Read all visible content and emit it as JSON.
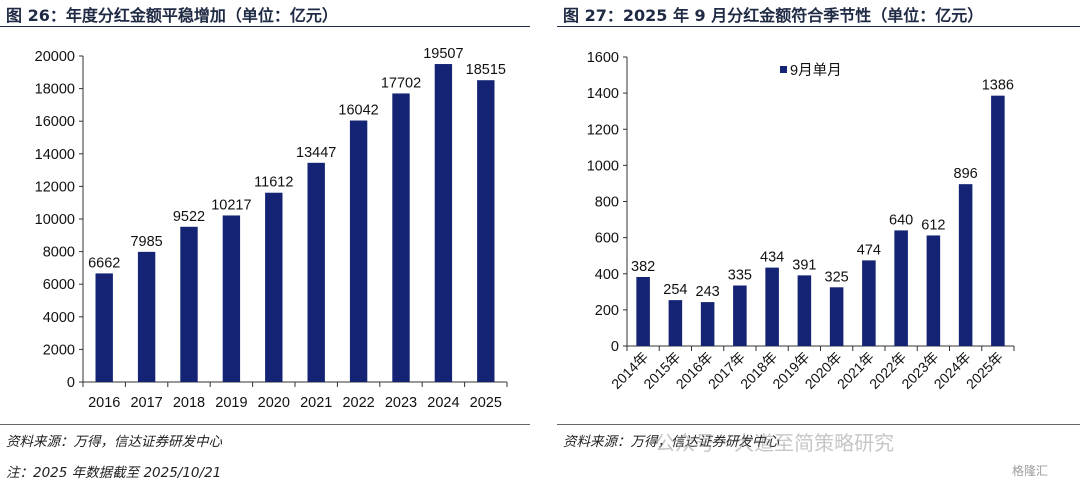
{
  "figures": [
    {
      "title": "图 26：年度分红金额平稳增加（单位：亿元）",
      "source": "资料来源：万得，信达证券研发中心",
      "footnote": "注：2025 年数据截至 2025/10/21"
    },
    {
      "title": "图 27：2025 年 9 月分红金额符合季节性（单位：亿元）",
      "source": "资料来源：万得，信达证券研发中心"
    }
  ],
  "watermark": {
    "text": "公众号 · 大道至简策略研究",
    "logo": "格隆汇"
  },
  "colors": {
    "bar": "#142374",
    "title": "#1f2a44"
  },
  "chart_data": [
    {
      "type": "bar",
      "title": "",
      "xlabel": "",
      "ylabel": "",
      "categories": [
        "2016",
        "2017",
        "2018",
        "2019",
        "2020",
        "2021",
        "2022",
        "2023",
        "2024",
        "2025"
      ],
      "values": [
        6662,
        7985,
        9522,
        10217,
        11612,
        13447,
        16042,
        17702,
        19507,
        18515
      ],
      "ylim": [
        0,
        20000
      ],
      "yticks": [
        0,
        2000,
        4000,
        6000,
        8000,
        10000,
        12000,
        14000,
        16000,
        18000,
        20000
      ],
      "data_labels": true,
      "grid": false,
      "legend": "none"
    },
    {
      "type": "bar",
      "title": "",
      "xlabel": "",
      "ylabel": "",
      "categories": [
        "2014年",
        "2015年",
        "2016年",
        "2017年",
        "2018年",
        "2019年",
        "2020年",
        "2021年",
        "2022年",
        "2023年",
        "2024年",
        "2025年"
      ],
      "series": [
        {
          "name": "9月单月",
          "values": [
            382,
            254,
            243,
            335,
            434,
            391,
            325,
            474,
            640,
            612,
            896,
            1386
          ]
        }
      ],
      "ylim": [
        0,
        1600
      ],
      "yticks": [
        0,
        200,
        400,
        600,
        800,
        1000,
        1200,
        1400,
        1600
      ],
      "data_labels": true,
      "grid": false,
      "legend": "top-left",
      "xtick_rotation": -45
    }
  ]
}
